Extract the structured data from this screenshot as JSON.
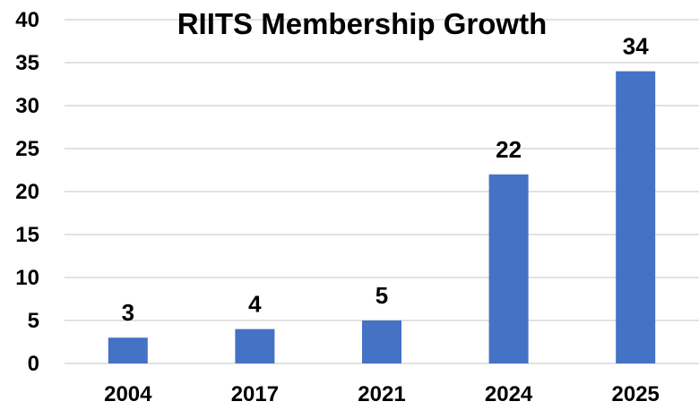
{
  "chart_data": {
    "type": "bar",
    "title": "RIITS Membership Growth",
    "categories": [
      "2004",
      "2017",
      "2021",
      "2024",
      "2025"
    ],
    "values": [
      3,
      4,
      5,
      22,
      34
    ],
    "xlabel": "",
    "ylabel": "",
    "ylim": [
      0,
      40
    ],
    "yticks": [
      0,
      5,
      10,
      15,
      20,
      25,
      30,
      35,
      40
    ],
    "grid": true,
    "legend": "none",
    "data_labels": true,
    "bar_color": "#4472c4"
  }
}
